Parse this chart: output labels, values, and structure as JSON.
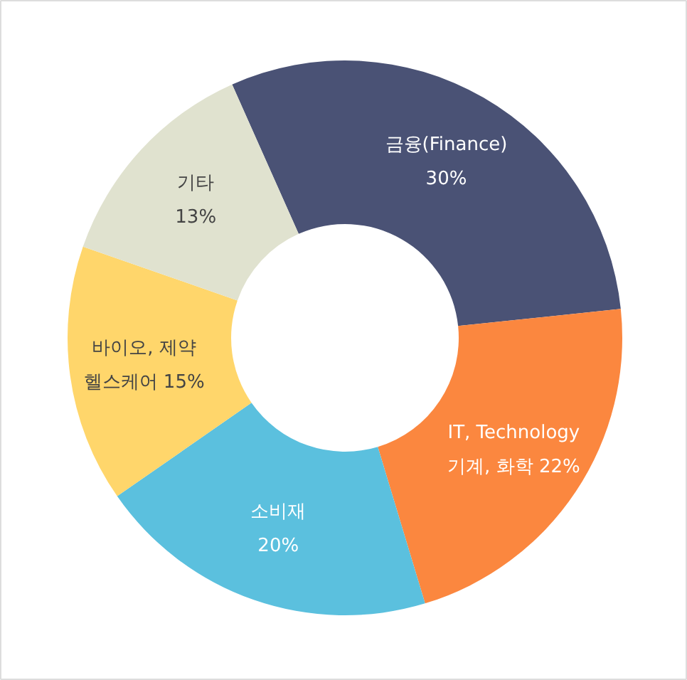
{
  "chart_data": {
    "type": "donut",
    "categories": [
      "금융(Finance)",
      "IT, Technology\n기계, 화학",
      "소비재",
      "바이오, 제약\n헬스케어",
      "기타"
    ],
    "values": [
      30,
      22,
      20,
      15,
      13
    ],
    "colors": [
      "#4a5275",
      "#fb873f",
      "#5bc0de",
      "#ffd66b",
      "#e0e2cf"
    ],
    "value_labels": [
      "30%",
      "22%",
      "20%",
      "15%",
      "13%"
    ]
  }
}
